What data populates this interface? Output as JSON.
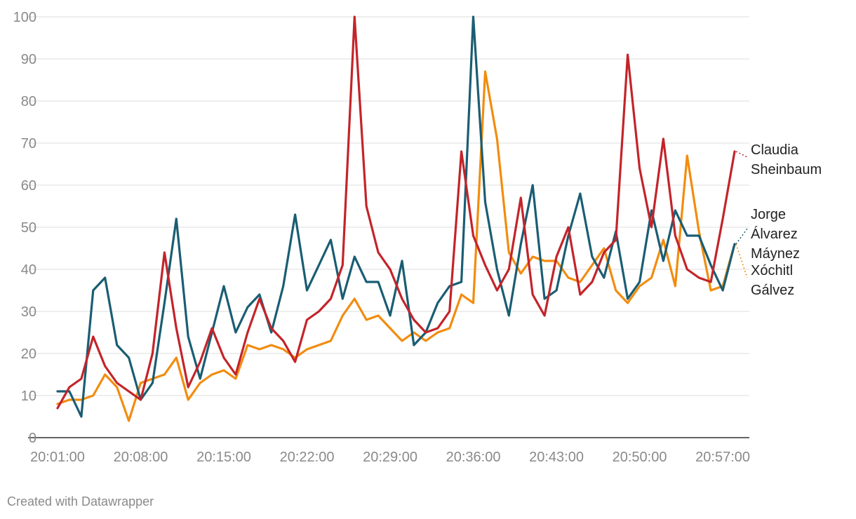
{
  "chart_data": {
    "type": "line",
    "x": [
      "20:01:00",
      "20:02:00",
      "20:03:00",
      "20:04:00",
      "20:05:00",
      "20:06:00",
      "20:07:00",
      "20:08:00",
      "20:09:00",
      "20:10:00",
      "20:11:00",
      "20:12:00",
      "20:13:00",
      "20:14:00",
      "20:15:00",
      "20:16:00",
      "20:17:00",
      "20:18:00",
      "20:19:00",
      "20:20:00",
      "20:21:00",
      "20:22:00",
      "20:23:00",
      "20:24:00",
      "20:25:00",
      "20:26:00",
      "20:27:00",
      "20:28:00",
      "20:29:00",
      "20:30:00",
      "20:31:00",
      "20:32:00",
      "20:33:00",
      "20:34:00",
      "20:35:00",
      "20:36:00",
      "20:37:00",
      "20:38:00",
      "20:39:00",
      "20:40:00",
      "20:41:00",
      "20:42:00",
      "20:43:00",
      "20:44:00",
      "20:45:00",
      "20:46:00",
      "20:47:00",
      "20:48:00",
      "20:49:00",
      "20:50:00",
      "20:51:00",
      "20:52:00",
      "20:53:00",
      "20:54:00",
      "20:55:00",
      "20:56:00",
      "20:57:00",
      "20:58:00"
    ],
    "x_ticks": [
      "20:01:00",
      "20:08:00",
      "20:15:00",
      "20:22:00",
      "20:29:00",
      "20:36:00",
      "20:43:00",
      "20:50:00",
      "20:57:00"
    ],
    "y_ticks": [
      0,
      10,
      20,
      30,
      40,
      50,
      60,
      70,
      80,
      90,
      100
    ],
    "ylim": [
      0,
      100
    ],
    "grid": "horizontal",
    "series": [
      {
        "name": "Claudia Sheinbaum",
        "label_lines": [
          "Claudia",
          "Sheinbaum"
        ],
        "color": "#c3242a",
        "values": [
          7,
          12,
          14,
          24,
          17,
          13,
          11,
          9,
          20,
          44,
          26,
          12,
          18,
          26,
          19,
          15,
          25,
          33,
          26,
          23,
          18,
          28,
          30,
          33,
          41,
          100,
          55,
          44,
          40,
          33,
          28,
          25,
          26,
          30,
          68,
          48,
          41,
          35,
          40,
          57,
          34,
          29,
          43,
          50,
          34,
          37,
          44,
          47,
          91,
          64,
          50,
          71,
          48,
          40,
          38,
          37,
          52,
          68
        ]
      },
      {
        "name": "Jorge Álvarez Máynez",
        "label_lines": [
          "Jorge",
          "Álvarez",
          "Máynez"
        ],
        "color": "#1a5d73",
        "values": [
          11,
          11,
          5,
          35,
          38,
          22,
          19,
          9,
          13,
          32,
          52,
          24,
          14,
          25,
          36,
          25,
          31,
          34,
          25,
          36,
          53,
          35,
          41,
          47,
          33,
          43,
          37,
          37,
          29,
          42,
          22,
          25,
          32,
          36,
          37,
          100,
          56,
          40,
          29,
          46,
          60,
          33,
          35,
          48,
          58,
          43,
          38,
          49,
          33,
          37,
          54,
          42,
          54,
          48,
          48,
          41,
          35,
          46
        ]
      },
      {
        "name": "Xóchitl Gálvez",
        "label_lines": [
          "Xóchitl",
          "Gálvez"
        ],
        "color": "#f28c0f",
        "values": [
          8,
          9,
          9,
          10,
          15,
          12,
          4,
          13,
          14,
          15,
          19,
          9,
          13,
          15,
          16,
          14,
          22,
          21,
          22,
          21,
          19,
          21,
          22,
          23,
          29,
          33,
          28,
          29,
          26,
          23,
          25,
          23,
          25,
          26,
          34,
          32,
          87,
          71,
          44,
          39,
          43,
          42,
          42,
          38,
          37,
          41,
          45,
          35,
          32,
          36,
          38,
          47,
          36,
          67,
          49,
          35,
          36,
          46
        ]
      }
    ]
  },
  "footer": {
    "credit": "Created with Datawrapper"
  }
}
